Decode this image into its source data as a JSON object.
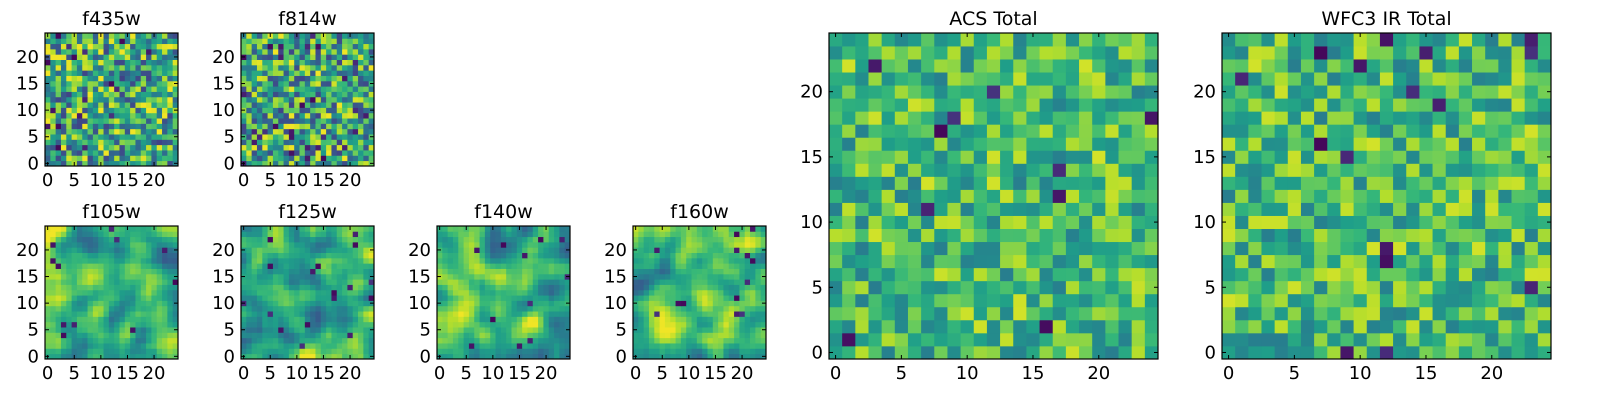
{
  "chart_data": [
    {
      "type": "heatmap",
      "title": "f435w",
      "shape": [
        25,
        25
      ],
      "colormap": "viridis",
      "xticks": [
        0,
        5,
        10,
        15,
        20
      ],
      "yticks": [
        0,
        5,
        10,
        15,
        20
      ],
      "xlim": [
        -0.5,
        24.5
      ],
      "ylim": [
        -0.5,
        24.5
      ],
      "value_range": [
        0,
        1
      ],
      "seed": 11,
      "smooth": 0,
      "mean": 0.6,
      "spread": 0.5,
      "outlier_rate": 0.04
    },
    {
      "type": "heatmap",
      "title": "f814w",
      "shape": [
        25,
        25
      ],
      "colormap": "viridis",
      "xticks": [
        0,
        5,
        10,
        15,
        20
      ],
      "yticks": [
        0,
        5,
        10,
        15,
        20
      ],
      "xlim": [
        -0.5,
        24.5
      ],
      "ylim": [
        -0.5,
        24.5
      ],
      "value_range": [
        0,
        1
      ],
      "seed": 23,
      "smooth": 0,
      "mean": 0.6,
      "spread": 0.5,
      "outlier_rate": 0.04
    },
    {
      "type": "heatmap",
      "title": "f105w",
      "shape": [
        25,
        25
      ],
      "colormap": "viridis",
      "xticks": [
        0,
        5,
        10,
        15,
        20
      ],
      "yticks": [
        0,
        5,
        10,
        15,
        20
      ],
      "xlim": [
        -0.5,
        24.5
      ],
      "ylim": [
        -0.5,
        24.5
      ],
      "value_range": [
        0,
        1
      ],
      "seed": 37,
      "smooth": 2,
      "mean": 0.65,
      "spread": 0.45,
      "outlier_rate": 0.02
    },
    {
      "type": "heatmap",
      "title": "f125w",
      "shape": [
        25,
        25
      ],
      "colormap": "viridis",
      "xticks": [
        0,
        5,
        10,
        15,
        20
      ],
      "yticks": [
        0,
        5,
        10,
        15,
        20
      ],
      "xlim": [
        -0.5,
        24.5
      ],
      "ylim": [
        -0.5,
        24.5
      ],
      "value_range": [
        0,
        1
      ],
      "seed": 41,
      "smooth": 2,
      "mean": 0.65,
      "spread": 0.45,
      "outlier_rate": 0.02
    },
    {
      "type": "heatmap",
      "title": "f140w",
      "shape": [
        25,
        25
      ],
      "colormap": "viridis",
      "xticks": [
        0,
        5,
        10,
        15,
        20
      ],
      "yticks": [
        0,
        5,
        10,
        15,
        20
      ],
      "xlim": [
        -0.5,
        24.5
      ],
      "ylim": [
        -0.5,
        24.5
      ],
      "value_range": [
        0,
        1
      ],
      "seed": 53,
      "smooth": 2,
      "mean": 0.65,
      "spread": 0.45,
      "outlier_rate": 0.02
    },
    {
      "type": "heatmap",
      "title": "f160w",
      "shape": [
        25,
        25
      ],
      "colormap": "viridis",
      "xticks": [
        0,
        5,
        10,
        15,
        20
      ],
      "yticks": [
        0,
        5,
        10,
        15,
        20
      ],
      "xlim": [
        -0.5,
        24.5
      ],
      "ylim": [
        -0.5,
        24.5
      ],
      "value_range": [
        0,
        1
      ],
      "seed": 67,
      "smooth": 2,
      "mean": 0.66,
      "spread": 0.45,
      "outlier_rate": 0.02
    },
    {
      "type": "heatmap",
      "title": "ACS Total",
      "shape": [
        25,
        25
      ],
      "colormap": "viridis",
      "xticks": [
        0,
        5,
        10,
        15,
        20
      ],
      "yticks": [
        0,
        5,
        10,
        15,
        20
      ],
      "xlim": [
        -0.5,
        24.5
      ],
      "ylim": [
        -0.5,
        24.5
      ],
      "value_range": [
        0,
        1
      ],
      "seed": 79,
      "smooth": 0,
      "mean": 0.68,
      "spread": 0.32,
      "outlier_rate": 0.025
    },
    {
      "type": "heatmap",
      "title": "WFC3 IR Total",
      "shape": [
        25,
        25
      ],
      "colormap": "viridis",
      "xticks": [
        0,
        5,
        10,
        15,
        20
      ],
      "yticks": [
        0,
        5,
        10,
        15,
        20
      ],
      "xlim": [
        -0.5,
        24.5
      ],
      "ylim": [
        -0.5,
        24.5
      ],
      "value_range": [
        0,
        1
      ],
      "seed": 97,
      "smooth": 0,
      "mean": 0.68,
      "spread": 0.32,
      "outlier_rate": 0.03
    }
  ]
}
